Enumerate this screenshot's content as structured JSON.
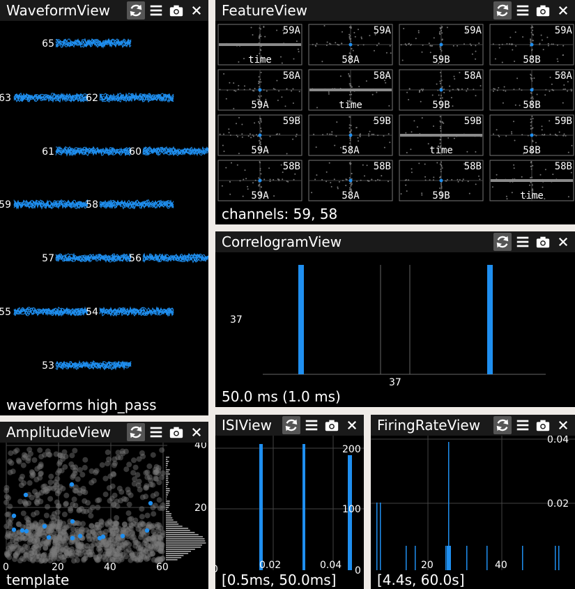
{
  "toolbar": {
    "icons": [
      "refresh-icon",
      "menu-icon",
      "camera-icon",
      "close-icon"
    ],
    "active": "refresh-icon"
  },
  "waveform_view": {
    "title": "WaveformView",
    "status": "waveforms high_pass",
    "channel_labels": [
      "65",
      "63",
      "62",
      "61",
      "60",
      "59",
      "58",
      "57",
      "56",
      "55",
      "54",
      "53"
    ]
  },
  "feature_view": {
    "title": "FeatureView",
    "status": "channels: 59, 58",
    "cells": [
      {
        "top": "59A",
        "bottom": "time"
      },
      {
        "top": "59A",
        "bottom": "58A"
      },
      {
        "top": "59A",
        "bottom": "59B"
      },
      {
        "top": "59A",
        "bottom": "58B"
      },
      {
        "top": "58A",
        "bottom": "59A"
      },
      {
        "top": "58A",
        "bottom": "time"
      },
      {
        "top": "58A",
        "bottom": "59B"
      },
      {
        "top": "58A",
        "bottom": "58B"
      },
      {
        "top": "59B",
        "bottom": "59A"
      },
      {
        "top": "59B",
        "bottom": "58A"
      },
      {
        "top": "59B",
        "bottom": "time"
      },
      {
        "top": "59B",
        "bottom": "58B"
      },
      {
        "top": "58B",
        "bottom": "59A"
      },
      {
        "top": "58B",
        "bottom": "58A"
      },
      {
        "top": "58B",
        "bottom": "59B"
      },
      {
        "top": "58B",
        "bottom": "time"
      }
    ]
  },
  "correlogram_view": {
    "title": "CorrelogramView",
    "status": "50.0 ms (1.0 ms)",
    "y_label": "37",
    "x_label": "37"
  },
  "amplitude_view": {
    "title": "AmplitudeView",
    "status": "template",
    "x_ticks": [
      "0",
      "20",
      "40",
      "60"
    ],
    "y_ticks": [
      "40",
      "20"
    ]
  },
  "isi_view": {
    "title": "ISIView",
    "status": "[0.5ms, 50.0ms]",
    "x_ticks": [
      "0",
      "0.02",
      "0.04"
    ],
    "y_ticks": [
      "200",
      "100",
      "0"
    ]
  },
  "firing_rate_view": {
    "title": "FiringRateView",
    "status": "[4.4s, 60.0s]",
    "x_ticks": [
      "20",
      "40"
    ],
    "y_ticks": [
      "0.04",
      "0.02"
    ]
  }
}
